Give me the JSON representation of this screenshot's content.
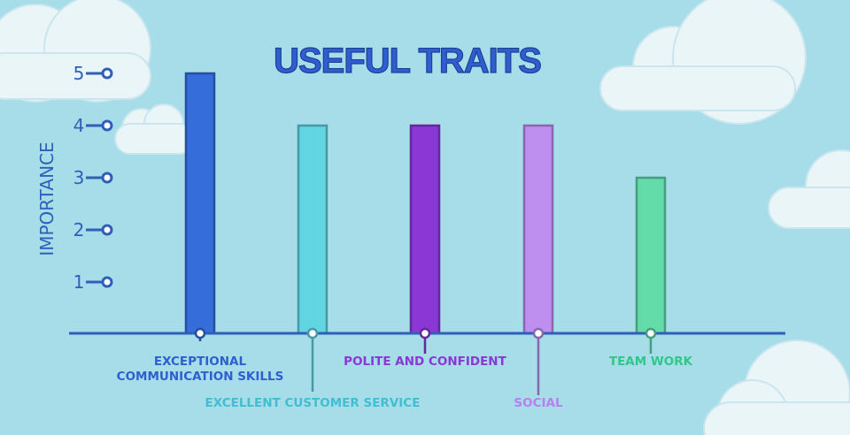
{
  "chart_data": {
    "type": "bar",
    "title": "USEFUL TRAITS",
    "ylabel": "IMPORTANCE",
    "xlabel": "",
    "ylim": [
      0,
      5
    ],
    "yticks": [
      1,
      2,
      3,
      4,
      5
    ],
    "categories": [
      "EXCEPTIONAL COMMUNICATION SKILLS",
      "EXCELLENT CUSTOMER SERVICE",
      "POLITE AND CONFIDENT",
      "SOCIAL",
      "TEAM WORK"
    ],
    "values": [
      5,
      4,
      4,
      4,
      3
    ],
    "colors": [
      "#356ddb",
      "#62d5e2",
      "#8a37d6",
      "#bf8ff0",
      "#63dca9"
    ],
    "grid": false,
    "legend": "none"
  },
  "theme": {
    "background": "#a6dde9",
    "cloud": "#eaf5f8",
    "axis": "#2f5fb8",
    "title_color": "#2f5fcf"
  }
}
